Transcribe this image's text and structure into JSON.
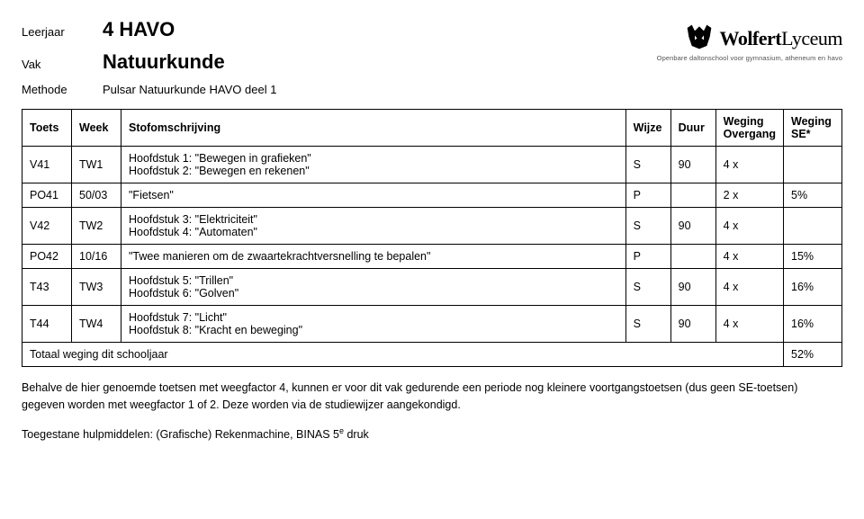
{
  "header": {
    "leerjaar_label": "Leerjaar",
    "leerjaar_value": "4 HAVO",
    "vak_label": "Vak",
    "vak_value": "Natuurkunde",
    "methode_label": "Methode",
    "methode_value": "Pulsar Natuurkunde HAVO deel 1"
  },
  "logo": {
    "name_bold": "Wolfert",
    "name_light": "Lyceum",
    "subline": "Openbare daltonschool voor gymnasium, atheneum en havo"
  },
  "columns": {
    "toets": "Toets",
    "week": "Week",
    "stof": "Stofomschrijving",
    "wijze": "Wijze",
    "duur": "Duur",
    "weg_overgang_top": "Weging",
    "weg_overgang_bot": "Overgang",
    "weg_se_top": "Weging",
    "weg_se_bot": "SE*"
  },
  "rows": [
    {
      "toets": "V41",
      "week": "TW1",
      "stof": "Hoofdstuk 1: \"Bewegen in grafieken\"\nHoofdstuk 2: \"Bewegen en rekenen\"",
      "wijze": "S",
      "duur": "90",
      "wegov": "4 x",
      "wegse": ""
    },
    {
      "toets": "PO41",
      "week": "50/03",
      "stof": "\"Fietsen\"",
      "wijze": "P",
      "duur": "",
      "wegov": "2 x",
      "wegse": "5%"
    },
    {
      "toets": "V42",
      "week": "TW2",
      "stof": "Hoofdstuk 3: \"Elektriciteit\"\nHoofdstuk 4: \"Automaten\"",
      "wijze": "S",
      "duur": "90",
      "wegov": "4 x",
      "wegse": ""
    },
    {
      "toets": "PO42",
      "week": "10/16",
      "stof": "\"Twee manieren om de zwaartekrachtversnelling te bepalen\"",
      "wijze": "P",
      "duur": "",
      "wegov": "4 x",
      "wegse": "15%"
    },
    {
      "toets": "T43",
      "week": "TW3",
      "stof": "Hoofdstuk 5: \"Trillen\"\nHoofdstuk 6: \"Golven\"",
      "wijze": "S",
      "duur": "90",
      "wegov": "4 x",
      "wegse": "16%"
    },
    {
      "toets": "T44",
      "week": "TW4",
      "stof": "Hoofdstuk 7: \"Licht\"\nHoofdstuk 8: \"Kracht en beweging\"",
      "wijze": "S",
      "duur": "90",
      "wegov": "4 x",
      "wegse": "16%"
    }
  ],
  "total_row": {
    "label": "Totaal weging dit schooljaar",
    "value": "52%"
  },
  "footer_note": "Behalve de hier genoemde toetsen met weegfactor 4, kunnen er voor dit vak gedurende een periode nog kleinere voortgangstoetsen (dus geen SE-toetsen) gegeven worden met weegfactor 1 of 2. Deze worden via de studiewijzer aangekondigd.",
  "footer_tools": "Toegestane hulpmiddelen: (Grafische) Rekenmachine, BINAS 5ᵉ druk",
  "colors": {
    "text": "#000000",
    "border": "#000000",
    "background": "#ffffff",
    "logo_sub": "#555555"
  }
}
